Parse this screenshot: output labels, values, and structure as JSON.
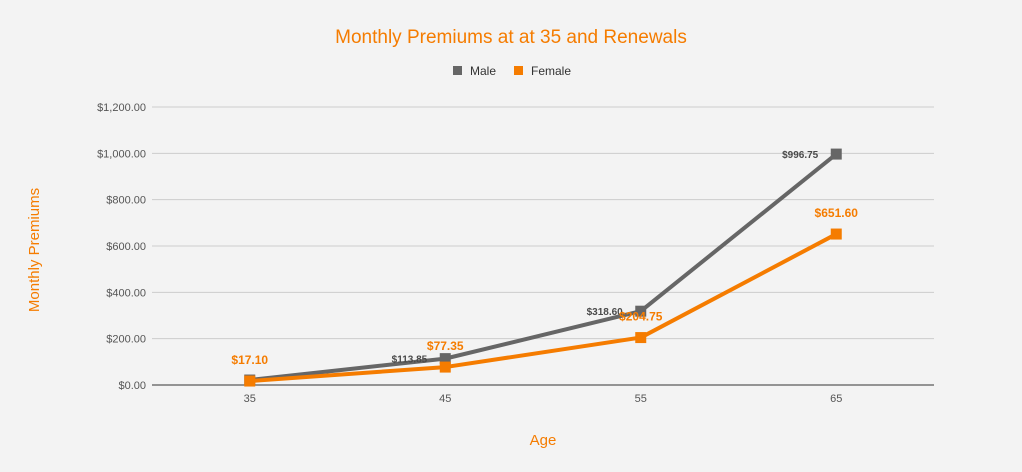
{
  "chart_data": {
    "type": "line",
    "title": "Monthly Premiums at at 35 and Renewals",
    "xlabel": "Age",
    "ylabel": "Monthly Premiums",
    "categories": [
      "35",
      "45",
      "55",
      "65"
    ],
    "ylim": [
      0,
      1200
    ],
    "yticks": [
      "$0.00",
      "$200.00",
      "$400.00",
      "$600.00",
      "$800.00",
      "$1,000.00",
      "$1,200.00"
    ],
    "grid": true,
    "legend_position": "top",
    "series": [
      {
        "name": "Male",
        "color": "#666666",
        "marker": "square",
        "values": [
          21.5,
          113.85,
          318.6,
          996.75
        ],
        "labels": [
          "",
          "$113.85",
          "$318.60",
          "$996.75"
        ]
      },
      {
        "name": "Female",
        "color": "#f57c00",
        "marker": "square",
        "values": [
          17.1,
          77.35,
          204.75,
          651.6
        ],
        "labels": [
          "$17.10",
          "$77.35",
          "$204.75",
          "$651.60"
        ]
      }
    ]
  }
}
